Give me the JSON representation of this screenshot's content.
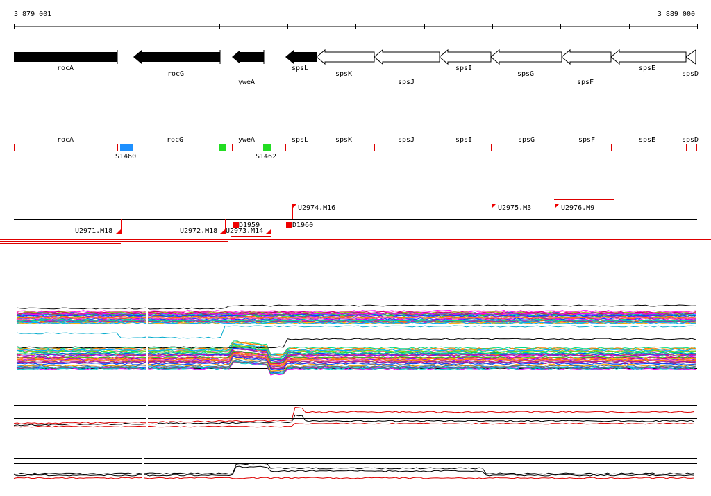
{
  "coords": {
    "start": "3 879 001",
    "end": "3 889 000"
  },
  "genes": [
    {
      "name": "rocA",
      "strand": "filled"
    },
    {
      "name": "rocG",
      "strand": "filled-rev"
    },
    {
      "name": "yweA",
      "strand": "filled-rev"
    },
    {
      "name": "spsL",
      "strand": "filled-rev"
    },
    {
      "name": "spsK",
      "strand": "open-rev"
    },
    {
      "name": "spsJ",
      "strand": "open-rev"
    },
    {
      "name": "spsI",
      "strand": "open-rev"
    },
    {
      "name": "spsG",
      "strand": "open-rev"
    },
    {
      "name": "spsF",
      "strand": "open-rev"
    },
    {
      "name": "spsE",
      "strand": "open-rev"
    },
    {
      "name": "spsD",
      "strand": "open-rev"
    }
  ],
  "feature_boxes": [
    {
      "name": "rocA"
    },
    {
      "name": "rocG"
    },
    {
      "name": "yweA"
    },
    {
      "name": "spsL"
    },
    {
      "name": "spsK"
    },
    {
      "name": "spsJ"
    },
    {
      "name": "spsI"
    },
    {
      "name": "spsG"
    },
    {
      "name": "spsF"
    },
    {
      "name": "spsE"
    },
    {
      "name": "spsD"
    }
  ],
  "segment_markers": [
    {
      "label": "S1460",
      "color": "#1e90ff"
    },
    {
      "label": "S1462",
      "color": "#22dd22"
    }
  ],
  "upper_markers": [
    {
      "label": "U2974.M16"
    },
    {
      "label": "U2975.M3"
    },
    {
      "label": "U2976.M9"
    }
  ],
  "lower_markers": [
    {
      "label": "U2971.M18"
    },
    {
      "label": "U2972.M18"
    },
    {
      "label": "U2973.M14"
    },
    {
      "label": "D1959"
    },
    {
      "label": "D1960"
    }
  ],
  "colors": {
    "gene_fill": "#000000",
    "box_border": "#dd0000",
    "marker": "#ee0000",
    "series_a": "#000000",
    "series_b": "#dd0000"
  }
}
